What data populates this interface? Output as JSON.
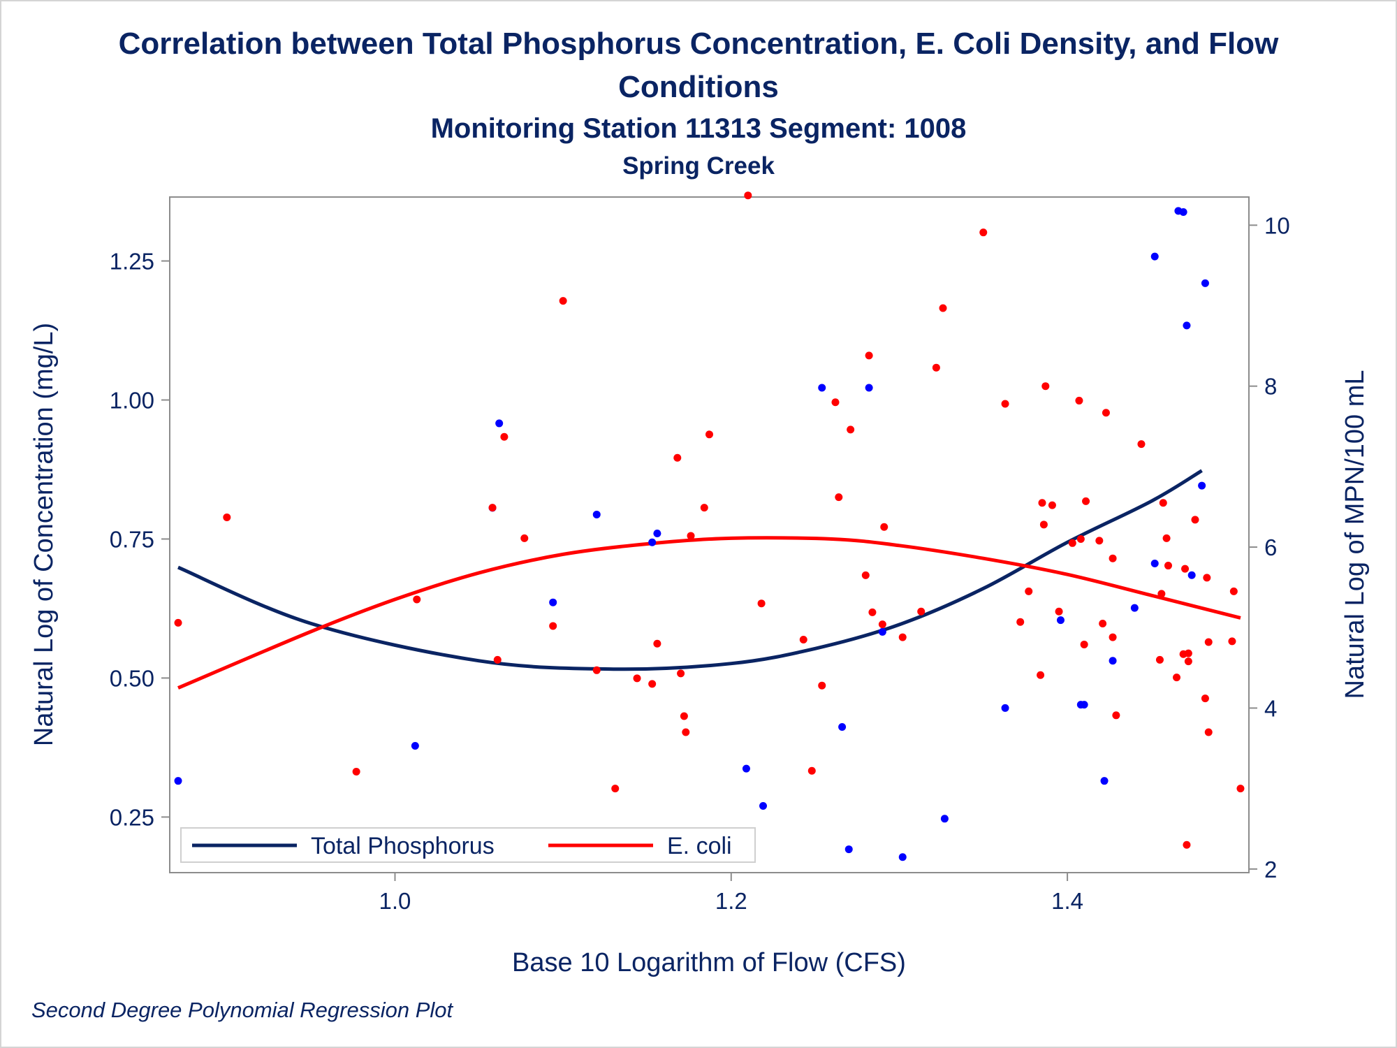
{
  "chart_data": {
    "type": "scatter",
    "title_line1": "Correlation between Total Phosphorus Concentration, E. Coli Density, and Flow",
    "title_line2": "Conditions",
    "subtitle": "Monitoring Station 11313 Segment: 1008",
    "subtitle2": "Spring Creek",
    "footnote": "Second Degree Polynomial Regression Plot",
    "xlabel": "Base 10 Logarithm of Flow (CFS)",
    "ylabel_left": "Natural Log of Concentration (mg/L)",
    "ylabel_right": "Natural Log of MPN/100 mL",
    "xlim": [
      0.866,
      1.508
    ],
    "ylim_left": [
      0.15,
      1.365
    ],
    "ylim_right": [
      1.955,
      10.35
    ],
    "x_ticks": [
      "1.0",
      "1.2",
      "1.4"
    ],
    "x_tick_values": [
      1.0,
      1.2,
      1.4
    ],
    "y_left_ticks": [
      "0.25",
      "0.50",
      "0.75",
      "1.00",
      "1.25"
    ],
    "y_left_tick_values": [
      0.25,
      0.5,
      0.75,
      1.0,
      1.25
    ],
    "y_right_ticks": [
      "2",
      "4",
      "6",
      "8",
      "10"
    ],
    "y_right_tick_values": [
      2,
      4,
      6,
      8,
      10
    ],
    "grid": false,
    "legend_position": "bottom-left",
    "series": [
      {
        "name": "Total Phosphorus",
        "axis": "left",
        "color": "#0000ff",
        "line_color": "#0a2463",
        "points": [
          [
            0.871,
            0.315
          ],
          [
            1.012,
            0.378
          ],
          [
            1.058,
            0.806
          ],
          [
            1.062,
            0.958
          ],
          [
            1.094,
            0.636
          ],
          [
            1.12,
            0.794
          ],
          [
            1.153,
            0.744
          ],
          [
            1.156,
            0.76
          ],
          [
            1.209,
            0.337
          ],
          [
            1.219,
            0.27
          ],
          [
            1.254,
            1.022
          ],
          [
            1.266,
            0.412
          ],
          [
            1.27,
            0.192
          ],
          [
            1.282,
            1.022
          ],
          [
            1.29,
            0.583
          ],
          [
            1.302,
            0.178
          ],
          [
            1.327,
            0.247
          ],
          [
            1.363,
            0.446
          ],
          [
            1.396,
            0.604
          ],
          [
            1.408,
            0.452
          ],
          [
            1.41,
            0.452
          ],
          [
            1.422,
            0.315
          ],
          [
            1.427,
            0.531
          ],
          [
            1.44,
            0.626
          ],
          [
            1.452,
            0.706
          ],
          [
            1.452,
            1.258
          ],
          [
            1.466,
            1.34
          ],
          [
            1.469,
            1.338
          ],
          [
            1.471,
            1.134
          ],
          [
            1.474,
            0.685
          ],
          [
            1.48,
            0.846
          ],
          [
            1.482,
            1.21
          ]
        ],
        "fit": [
          [
            0.871,
            0.699
          ],
          [
            0.95,
            0.598
          ],
          [
            1.05,
            0.531
          ],
          [
            1.13,
            0.516
          ],
          [
            1.2,
            0.526
          ],
          [
            1.25,
            0.553
          ],
          [
            1.3,
            0.596
          ],
          [
            1.35,
            0.661
          ],
          [
            1.4,
            0.744
          ],
          [
            1.45,
            0.818
          ],
          [
            1.48,
            0.873
          ]
        ]
      },
      {
        "name": "E. coli",
        "axis": "right",
        "color": "#ff0000",
        "line_color": "#ff0000",
        "points": [
          [
            0.871,
            5.06
          ],
          [
            0.9,
            6.37
          ],
          [
            0.977,
            3.21
          ],
          [
            1.013,
            5.35
          ],
          [
            1.058,
            6.49
          ],
          [
            1.061,
            4.6
          ],
          [
            1.065,
            7.37
          ],
          [
            1.077,
            6.11
          ],
          [
            1.094,
            5.02
          ],
          [
            1.1,
            9.06
          ],
          [
            1.12,
            4.47
          ],
          [
            1.131,
            3.0
          ],
          [
            1.144,
            4.37
          ],
          [
            1.153,
            4.3
          ],
          [
            1.156,
            4.8
          ],
          [
            1.168,
            7.11
          ],
          [
            1.17,
            4.43
          ],
          [
            1.172,
            3.9
          ],
          [
            1.173,
            3.7
          ],
          [
            1.176,
            6.14
          ],
          [
            1.184,
            6.49
          ],
          [
            1.187,
            7.4
          ],
          [
            1.21,
            10.37
          ],
          [
            1.218,
            5.3
          ],
          [
            1.243,
            4.85
          ],
          [
            1.248,
            3.22
          ],
          [
            1.254,
            4.28
          ],
          [
            1.262,
            7.8
          ],
          [
            1.264,
            6.62
          ],
          [
            1.271,
            7.46
          ],
          [
            1.28,
            5.65
          ],
          [
            1.282,
            8.38
          ],
          [
            1.284,
            5.19
          ],
          [
            1.29,
            5.04
          ],
          [
            1.291,
            6.25
          ],
          [
            1.302,
            4.88
          ],
          [
            1.313,
            5.2
          ],
          [
            1.322,
            8.23
          ],
          [
            1.326,
            8.97
          ],
          [
            1.35,
            9.91
          ],
          [
            1.363,
            7.78
          ],
          [
            1.372,
            5.07
          ],
          [
            1.377,
            5.45
          ],
          [
            1.384,
            4.41
          ],
          [
            1.385,
            6.55
          ],
          [
            1.386,
            6.28
          ],
          [
            1.387,
            8.0
          ],
          [
            1.391,
            6.52
          ],
          [
            1.395,
            5.2
          ],
          [
            1.403,
            6.05
          ],
          [
            1.407,
            7.82
          ],
          [
            1.408,
            6.1
          ],
          [
            1.41,
            4.79
          ],
          [
            1.411,
            6.57
          ],
          [
            1.419,
            6.08
          ],
          [
            1.421,
            5.05
          ],
          [
            1.423,
            7.67
          ],
          [
            1.427,
            4.88
          ],
          [
            1.427,
            5.86
          ],
          [
            1.429,
            3.91
          ],
          [
            1.444,
            7.28
          ],
          [
            1.455,
            4.6
          ],
          [
            1.456,
            5.42
          ],
          [
            1.457,
            6.55
          ],
          [
            1.459,
            6.11
          ],
          [
            1.46,
            5.77
          ],
          [
            1.465,
            4.38
          ],
          [
            1.469,
            4.67
          ],
          [
            1.47,
            5.73
          ],
          [
            1.471,
            2.3
          ],
          [
            1.472,
            4.68
          ],
          [
            1.472,
            4.58
          ],
          [
            1.476,
            6.34
          ],
          [
            1.482,
            4.12
          ],
          [
            1.483,
            5.62
          ],
          [
            1.484,
            3.7
          ],
          [
            1.484,
            4.82
          ],
          [
            1.498,
            4.83
          ],
          [
            1.499,
            5.45
          ],
          [
            1.503,
            3.0
          ]
        ],
        "fit": [
          [
            0.871,
            4.25
          ],
          [
            0.95,
            4.95
          ],
          [
            1.0,
            5.35
          ],
          [
            1.05,
            5.68
          ],
          [
            1.1,
            5.91
          ],
          [
            1.15,
            6.04
          ],
          [
            1.2,
            6.11
          ],
          [
            1.26,
            6.1
          ],
          [
            1.3,
            6.02
          ],
          [
            1.35,
            5.86
          ],
          [
            1.4,
            5.66
          ],
          [
            1.45,
            5.4
          ],
          [
            1.503,
            5.12
          ]
        ]
      }
    ]
  }
}
